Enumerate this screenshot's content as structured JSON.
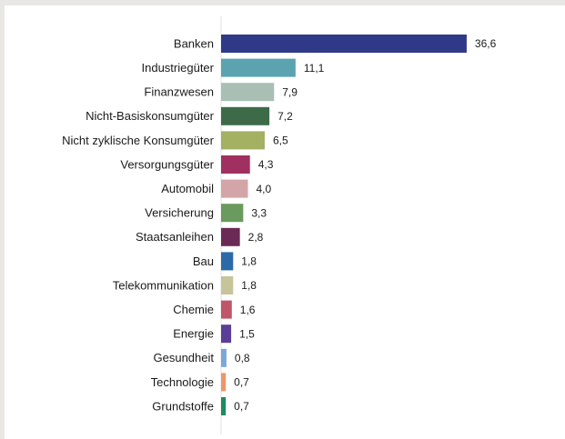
{
  "chart_data": {
    "type": "bar",
    "orientation": "horizontal",
    "categories": [
      "Banken",
      "Industriegüter",
      "Finanzwesen",
      "Nicht-Basiskonsumgüter",
      "Nicht zyklische Konsumgüter",
      "Versorgungsgüter",
      "Automobil",
      "Versicherung",
      "Staatsanleihen",
      "Bau",
      "Telekommunikation",
      "Chemie",
      "Energie",
      "Gesundheit",
      "Technologie",
      "Grundstoffe"
    ],
    "values": [
      36.6,
      11.1,
      7.9,
      7.2,
      6.5,
      4.3,
      4.0,
      3.3,
      2.8,
      1.8,
      1.8,
      1.6,
      1.5,
      0.8,
      0.7,
      0.7
    ],
    "value_labels": [
      "36,6",
      "11,1",
      "7,9",
      "7,2",
      "6,5",
      "4,3",
      "4,0",
      "3,3",
      "2,8",
      "1,8",
      "1,8",
      "1,6",
      "1,5",
      "0,8",
      "0,7",
      "0,7"
    ],
    "colors": [
      "#2e3a87",
      "#5ba3b0",
      "#a9bfb5",
      "#3d6b4a",
      "#a4b062",
      "#a0305f",
      "#d4a5a8",
      "#6a9a5e",
      "#6b2a55",
      "#2a6aa8",
      "#c5c49a",
      "#c0566a",
      "#5a3f96",
      "#7aa8d8",
      "#f0956a",
      "#1f8a5e"
    ],
    "xlim": [
      0,
      40
    ]
  }
}
